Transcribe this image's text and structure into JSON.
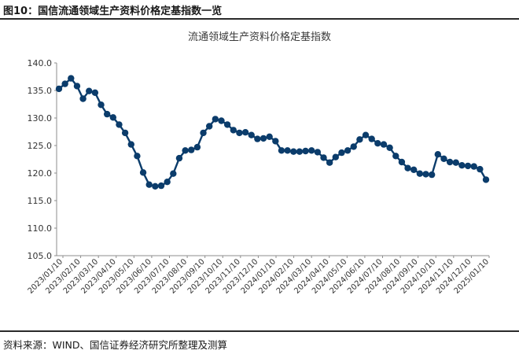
{
  "figure": {
    "header": "图10：国信流通领域生产资料价格定基指数一览",
    "source": "资料来源：WIND、国信证券经济研究所整理及测算"
  },
  "chart_data": {
    "type": "line",
    "title": "流通领域生产资料价格定基指数",
    "xlabel": "",
    "ylabel": "",
    "ylim": [
      105,
      140
    ],
    "yticks": [
      "105.0",
      "110.0",
      "115.0",
      "120.0",
      "125.0",
      "130.0",
      "135.0",
      "140.0"
    ],
    "xtick_labels": [
      "2023/01/10",
      "2023/02/10",
      "2023/03/10",
      "2023/04/10",
      "2023/05/10",
      "2023/06/10",
      "2023/07/10",
      "2023/08/10",
      "2023/09/10",
      "2023/10/10",
      "2023/11/10",
      "2023/12/10",
      "2024/01/10",
      "2024/02/10",
      "2024/03/10",
      "2024/04/10",
      "2024/05/10",
      "2024/06/10",
      "2024/07/10",
      "2024/08/10",
      "2024/09/10",
      "2024/10/10",
      "2024/11/10",
      "2024/12/10",
      "2025/01/10"
    ],
    "grid": false,
    "legend": "none",
    "line_color": "#0b3c6b",
    "series": [
      {
        "values": [
          135.3,
          136.2,
          137.2,
          135.8,
          133.5,
          134.9,
          134.6,
          132.4,
          130.7,
          130.1,
          128.8,
          127.3,
          125.2,
          123.1,
          120.1,
          117.9,
          117.6,
          117.7,
          118.4,
          119.9,
          122.7,
          124.1,
          124.2,
          124.7,
          127.3,
          128.5,
          129.8,
          129.5,
          128.8,
          127.8,
          127.3,
          127.4,
          126.9,
          126.2,
          126.3,
          126.6,
          125.8,
          124.1,
          124.1,
          123.9,
          123.9,
          124.0,
          124.1,
          123.8,
          122.8,
          121.9,
          122.9,
          123.7,
          124.1,
          124.8,
          126.1,
          126.9,
          126.2,
          125.4,
          125.2,
          124.6,
          123.1,
          122.0,
          120.9,
          120.6,
          119.9,
          119.8,
          119.7,
          123.4,
          122.6,
          122.0,
          121.9,
          121.4,
          121.3,
          121.2,
          120.7,
          118.8
        ]
      }
    ]
  }
}
